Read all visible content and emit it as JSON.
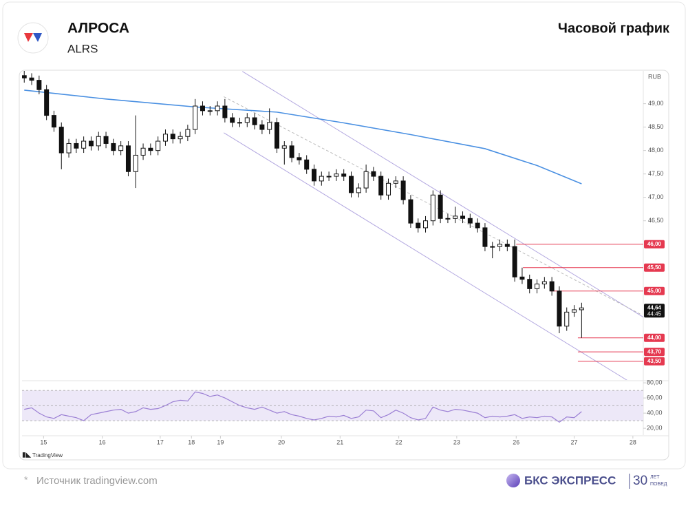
{
  "header": {
    "title": "АЛРОСА",
    "ticker": "ALRS",
    "chart_kind": "Часовой график"
  },
  "footer": {
    "source": "Источник tradingview.com",
    "star": "*",
    "brand": "БКС ЭКСПРЕСС",
    "years": "30",
    "years_text": [
      "ЛЕТ",
      "ПОБЕД"
    ]
  },
  "chart_data": {
    "type": "candlestick",
    "platform": "TradingView",
    "currency": "RUB",
    "xlim": [
      -0.3,
      83.3
    ],
    "ylim": [
      43.1,
      49.7
    ],
    "xticks": [
      {
        "value": 2.6,
        "label": "15"
      },
      {
        "value": 10.5,
        "label": "16"
      },
      {
        "value": 18.3,
        "label": "17"
      },
      {
        "value": 22.5,
        "label": "18"
      },
      {
        "value": 26.4,
        "label": "19"
      },
      {
        "value": 34.6,
        "label": "20"
      },
      {
        "value": 42.5,
        "label": "21"
      },
      {
        "value": 50.4,
        "label": "22"
      },
      {
        "value": 58.2,
        "label": "23"
      },
      {
        "value": 66.2,
        "label": "26"
      },
      {
        "value": 74,
        "label": "27"
      },
      {
        "value": 81.9,
        "label": "28"
      }
    ],
    "yticks": [
      {
        "value": 49,
        "label": "49,00"
      },
      {
        "value": 48.5,
        "label": "48,50"
      },
      {
        "value": 48,
        "label": "48,00"
      },
      {
        "value": 47.5,
        "label": "47,50"
      },
      {
        "value": 47,
        "label": "47,00"
      },
      {
        "value": 46.5,
        "label": "46,50"
      }
    ],
    "up_color": "#ffffff",
    "down_color": "#111111",
    "open": [
      49.6,
      49.55,
      49.5,
      49.3,
      48.75,
      48.5,
      47.95,
      48.15,
      48.05,
      48.2,
      48.1,
      48.3,
      48.15,
      48.0,
      48.1,
      47.55,
      47.9,
      48.05,
      48.0,
      48.2,
      48.35,
      48.25,
      48.3,
      48.45,
      48.95,
      48.85,
      48.85,
      48.95,
      48.7,
      48.6,
      48.6,
      48.7,
      48.55,
      48.45,
      48.6,
      48.05,
      48.1,
      47.85,
      47.8,
      47.6,
      47.35,
      47.45,
      47.45,
      47.5,
      47.45,
      47.1,
      47.2,
      47.55,
      47.45,
      47.05,
      47.3,
      47.35,
      46.95,
      46.45,
      46.35,
      46.5,
      47.05,
      46.55,
      46.55,
      46.6,
      46.55,
      46.45,
      46.35,
      45.95,
      45.95,
      46.0,
      45.95,
      45.3,
      45.25,
      45.05,
      45.15,
      45.2,
      45.0,
      44.25,
      44.55,
      44.6
    ],
    "high": [
      49.7,
      49.65,
      49.6,
      49.4,
      48.85,
      48.6,
      48.25,
      48.25,
      48.3,
      48.3,
      48.4,
      48.4,
      48.25,
      48.2,
      48.2,
      48.75,
      48.15,
      48.15,
      48.3,
      48.45,
      48.45,
      48.4,
      48.55,
      49.1,
      49.05,
      48.95,
      49.05,
      49.1,
      48.8,
      48.7,
      48.8,
      48.8,
      48.65,
      48.9,
      48.7,
      48.2,
      48.2,
      47.95,
      47.9,
      47.7,
      47.55,
      47.55,
      47.6,
      47.6,
      47.55,
      47.3,
      47.7,
      47.65,
      47.55,
      47.4,
      47.45,
      47.45,
      47.05,
      46.55,
      46.6,
      47.15,
      47.15,
      46.65,
      46.8,
      46.7,
      46.65,
      46.55,
      46.45,
      46.05,
      46.1,
      46.1,
      46.1,
      45.5,
      45.35,
      45.25,
      45.3,
      45.3,
      45.1,
      44.65,
      44.7,
      44.75
    ],
    "low": [
      49.45,
      49.4,
      49.2,
      48.65,
      48.4,
      47.6,
      47.85,
      47.95,
      47.95,
      48.0,
      48.0,
      48.05,
      47.9,
      47.9,
      47.45,
      47.2,
      47.8,
      47.9,
      47.9,
      48.1,
      48.15,
      48.15,
      48.2,
      48.35,
      48.75,
      48.75,
      48.75,
      48.6,
      48.5,
      48.5,
      48.5,
      48.45,
      48.35,
      48.35,
      47.95,
      47.7,
      47.75,
      47.7,
      47.5,
      47.25,
      47.25,
      47.35,
      47.35,
      47.35,
      47.0,
      47.0,
      47.1,
      47.35,
      46.95,
      46.95,
      47.2,
      46.85,
      46.35,
      46.25,
      46.25,
      46.4,
      46.45,
      46.45,
      46.45,
      46.45,
      46.35,
      46.25,
      45.85,
      45.7,
      45.85,
      45.85,
      45.2,
      45.15,
      44.95,
      44.95,
      45.05,
      44.9,
      44.1,
      44.15,
      44.45,
      44.0
    ],
    "close": [
      49.55,
      49.5,
      49.3,
      48.75,
      48.5,
      47.95,
      48.15,
      48.05,
      48.2,
      48.1,
      48.3,
      48.15,
      48.0,
      48.1,
      47.55,
      47.9,
      48.05,
      48.0,
      48.2,
      48.35,
      48.25,
      48.3,
      48.45,
      48.95,
      48.85,
      48.85,
      48.95,
      48.7,
      48.6,
      48.6,
      48.7,
      48.55,
      48.45,
      48.6,
      48.05,
      48.1,
      47.85,
      47.8,
      47.6,
      47.35,
      47.45,
      47.45,
      47.5,
      47.45,
      47.1,
      47.2,
      47.55,
      47.45,
      47.05,
      47.3,
      47.35,
      46.95,
      46.45,
      46.35,
      46.5,
      47.05,
      46.55,
      46.55,
      46.6,
      46.55,
      46.45,
      46.35,
      45.95,
      45.95,
      46.0,
      45.95,
      45.3,
      45.25,
      45.05,
      45.15,
      45.2,
      45.0,
      44.25,
      44.55,
      44.6,
      44.64
    ],
    "ma": {
      "color": "#4a90e2",
      "x": [
        0,
        11,
        23,
        34,
        43,
        52,
        62,
        69,
        75
      ],
      "values": [
        49.29,
        49.1,
        48.93,
        48.82,
        48.59,
        48.34,
        48.04,
        47.68,
        47.29
      ]
    },
    "channels": [
      {
        "color": "#b3a8e0",
        "x": [
          29.35,
          83.33
        ],
        "y": [
          49.69,
          44.44
        ]
      },
      {
        "color": "#b3a8e0",
        "x": [
          26.85,
          81.48
        ],
        "y": [
          48.38,
          43.06
        ]
      },
      {
        "color": "#bbbbbb",
        "dashed": true,
        "x": [
          26.85,
          82.87
        ],
        "y": [
          49.15,
          44.51
        ]
      }
    ],
    "levels": [
      {
        "value": 46,
        "label": "46,00",
        "start": 66.2
      },
      {
        "value": 45.5,
        "label": "45,50",
        "start": 67.1
      },
      {
        "value": 45,
        "label": "45,00",
        "start": 70.8
      },
      {
        "value": 44,
        "label": "44,00",
        "start": 74.5
      },
      {
        "value": 43.7,
        "label": "43,70",
        "start": 74.5
      },
      {
        "value": 43.5,
        "label": "43,50",
        "start": 74.5
      }
    ],
    "level_color": "#e53950",
    "last_price": {
      "value": 44.64,
      "label": "44,64",
      "countdown": "44:45"
    },
    "rsi": {
      "color": "#9b7fd4",
      "ylim": [
        11,
        81
      ],
      "band": [
        30,
        70
      ],
      "mid": 50,
      "yticks": [
        {
          "value": 80,
          "label": "80,00"
        },
        {
          "value": 60,
          "label": "60,00"
        },
        {
          "value": 40,
          "label": "40,00"
        },
        {
          "value": 20,
          "label": "20,00"
        }
      ],
      "values": [
        45,
        47,
        40,
        35,
        33,
        38,
        36,
        34,
        30,
        38,
        40,
        42,
        44,
        45,
        40,
        42,
        47,
        45,
        46,
        50,
        55,
        57,
        56,
        68,
        66,
        62,
        64,
        60,
        55,
        50,
        47,
        45,
        48,
        44,
        40,
        42,
        38,
        36,
        33,
        31,
        33,
        36,
        35,
        37,
        33,
        35,
        44,
        43,
        34,
        38,
        44,
        40,
        34,
        31,
        33,
        48,
        44,
        42,
        45,
        44,
        42,
        40,
        34,
        36,
        35,
        36,
        38,
        33,
        35,
        34,
        36,
        35,
        28,
        35,
        34,
        42
      ]
    }
  }
}
